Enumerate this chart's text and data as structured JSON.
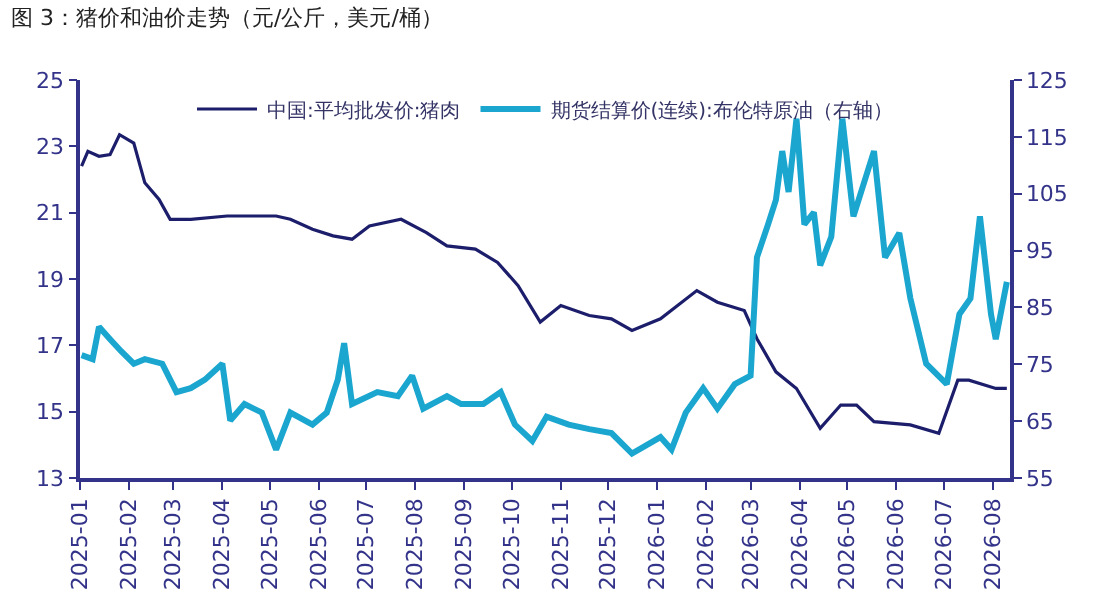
{
  "chart_data": {
    "type": "line",
    "title": "图 3：猪价和油价走势（元/公斤，美元/桶）",
    "xlim": [
      "2025-01-01",
      "2026-08-12"
    ],
    "xticks": [
      "2025-01",
      "2025-02",
      "2025-03",
      "2025-04",
      "2025-05",
      "2025-06",
      "2025-07",
      "2025-08",
      "2025-09",
      "2025-10",
      "2025-11",
      "2025-12",
      "2026-01",
      "2026-02",
      "2026-03",
      "2026-04",
      "2026-05",
      "2026-06",
      "2026-07",
      "2026-08"
    ],
    "ylim": [
      13,
      25
    ],
    "yticks": [
      13,
      15,
      17,
      19,
      21,
      23,
      25
    ],
    "y2lim": [
      55,
      125
    ],
    "y2ticks": [
      55,
      65,
      75,
      85,
      95,
      105,
      115,
      125
    ],
    "grid": false,
    "legend": "top",
    "marker": "none",
    "line_style": "solid",
    "series": [
      {
        "name": "中国:平均批发价:猪肉",
        "color": "#1c1e6b",
        "axis": "y",
        "x": [
          "2025-01-02",
          "2025-01-06",
          "2025-01-13",
          "2025-01-20",
          "2025-01-26",
          "2025-02-04",
          "2025-02-11",
          "2025-02-20",
          "2025-02-27",
          "2025-03-12",
          "2025-04-04",
          "2025-05-05",
          "2025-05-14",
          "2025-05-28",
          "2025-06-10",
          "2025-06-22",
          "2025-07-03",
          "2025-07-23",
          "2025-08-08",
          "2025-08-21",
          "2025-09-08",
          "2025-09-22",
          "2025-10-05",
          "2025-10-19",
          "2025-11-01",
          "2025-11-19",
          "2025-12-03",
          "2025-12-16",
          "2026-01-03",
          "2026-01-26",
          "2026-02-08",
          "2026-02-25",
          "2026-03-05",
          "2026-03-17",
          "2026-03-30",
          "2026-04-14",
          "2026-04-27",
          "2026-05-07",
          "2026-05-18",
          "2026-06-10",
          "2026-06-28",
          "2026-07-10",
          "2026-07-17",
          "2026-08-03",
          "2026-08-10"
        ],
        "values": [
          22.4,
          22.85,
          22.7,
          22.75,
          23.35,
          23.1,
          21.9,
          21.4,
          20.8,
          20.8,
          20.9,
          20.9,
          20.8,
          20.5,
          20.3,
          20.2,
          20.6,
          20.8,
          20.4,
          20.0,
          19.9,
          19.5,
          18.8,
          17.7,
          18.2,
          17.9,
          17.8,
          17.45,
          17.8,
          18.65,
          18.3,
          18.05,
          17.2,
          16.2,
          15.7,
          14.5,
          15.2,
          15.2,
          14.7,
          14.6,
          14.35,
          15.95,
          15.95,
          15.7,
          15.7
        ]
      },
      {
        "name": "期货结算价(连续):布伦特原油（右轴）",
        "color": "#1aa6cf",
        "axis": "y2",
        "x": [
          "2025-01-02",
          "2025-01-09",
          "2025-01-13",
          "2025-01-20",
          "2025-01-27",
          "2025-02-04",
          "2025-02-11",
          "2025-02-22",
          "2025-03-03",
          "2025-03-12",
          "2025-03-21",
          "2025-04-01",
          "2025-04-06",
          "2025-04-15",
          "2025-04-26",
          "2025-05-05",
          "2025-05-14",
          "2025-05-28",
          "2025-06-06",
          "2025-06-13",
          "2025-06-17",
          "2025-06-22",
          "2025-07-08",
          "2025-07-21",
          "2025-07-30",
          "2025-08-06",
          "2025-08-21",
          "2025-08-30",
          "2025-09-13",
          "2025-09-24",
          "2025-10-03",
          "2025-10-14",
          "2025-10-23",
          "2025-11-06",
          "2025-11-19",
          "2025-12-03",
          "2025-12-16",
          "2026-01-03",
          "2026-01-10",
          "2026-01-19",
          "2026-01-30",
          "2026-02-08",
          "2026-02-19",
          "2026-03-01",
          "2026-03-05",
          "2026-03-12",
          "2026-03-17",
          "2026-03-21",
          "2026-03-25",
          "2026-03-30",
          "2026-04-04",
          "2026-04-10",
          "2026-04-14",
          "2026-04-21",
          "2026-04-28",
          "2026-05-05",
          "2026-05-18",
          "2026-05-25",
          "2026-06-03",
          "2026-06-10",
          "2026-06-20",
          "2026-07-03",
          "2026-07-11",
          "2026-07-18",
          "2026-07-24",
          "2026-07-31",
          "2026-08-03",
          "2026-08-10"
        ],
        "values": [
          76.6,
          75.9,
          81.6,
          79.4,
          77.3,
          75.1,
          75.9,
          75.1,
          70.1,
          70.8,
          72.3,
          75.1,
          65.1,
          68.0,
          66.5,
          60.0,
          66.5,
          64.4,
          66.5,
          72.3,
          78.7,
          68.0,
          70.1,
          69.4,
          73.0,
          67.2,
          69.4,
          68.0,
          68.0,
          70.1,
          64.4,
          61.5,
          65.8,
          64.4,
          63.6,
          62.9,
          59.3,
          62.2,
          60.0,
          66.5,
          70.8,
          67.2,
          71.5,
          73.0,
          93.8,
          99.6,
          103.9,
          112.5,
          105.3,
          118.2,
          99.6,
          101.7,
          92.4,
          97.4,
          118.2,
          101.0,
          112.5,
          93.8,
          98.1,
          86.6,
          75.1,
          71.5,
          83.8,
          86.6,
          101.0,
          83.8,
          79.4,
          89.5
        ]
      }
    ]
  }
}
